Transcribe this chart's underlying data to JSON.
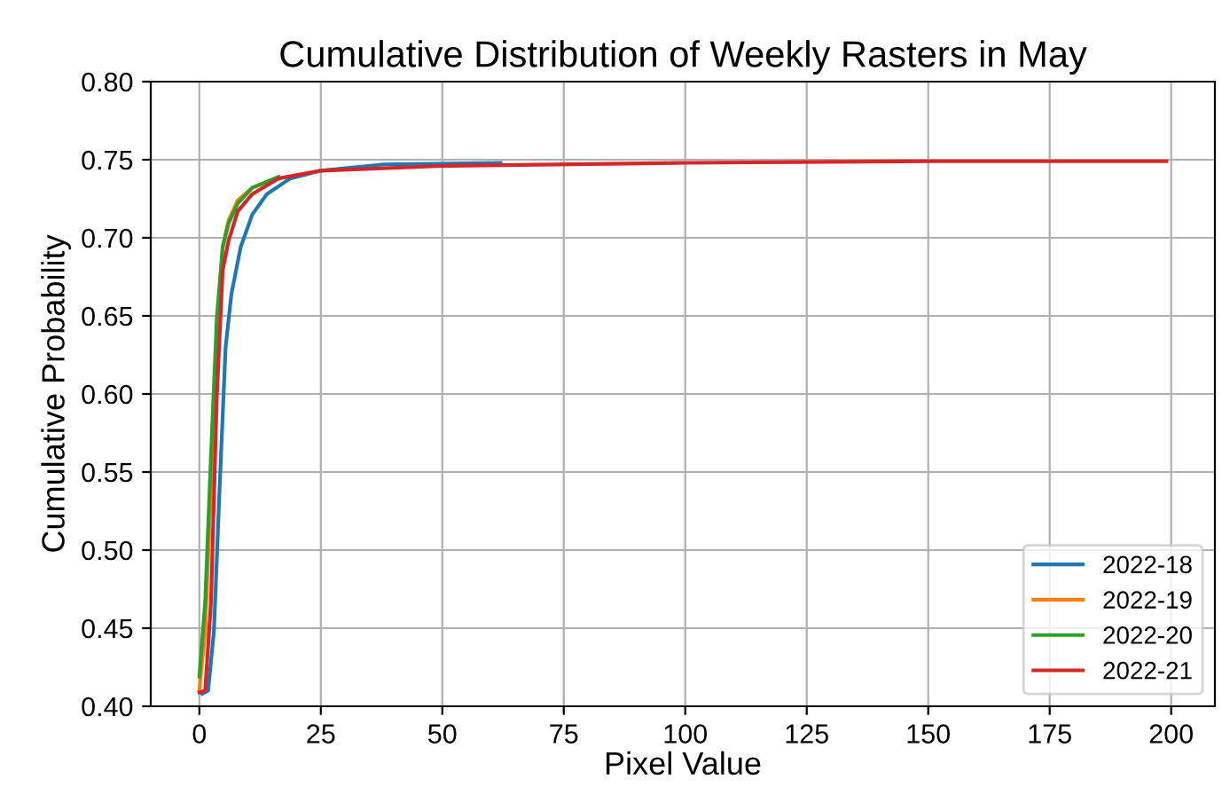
{
  "chart_data": {
    "type": "line",
    "title": "Cumulative Distribution of Weekly Rasters in May",
    "xlabel": "Pixel Value",
    "ylabel": "Cumulative Probability",
    "xlim": [
      -10,
      209
    ],
    "xticks": [
      0,
      25,
      50,
      75,
      100,
      125,
      150,
      175,
      200
    ],
    "ylim": [
      0.4,
      0.8
    ],
    "yticks": [
      {
        "value": 0.4,
        "label": "0.40"
      },
      0.45,
      {
        "value": 0.5,
        "label": "0.50"
      },
      0.55,
      {
        "value": 0.6,
        "label": "0.60"
      },
      0.65,
      {
        "value": 0.7,
        "label": "0.70"
      },
      0.75,
      {
        "value": 0.8,
        "label": "0.80"
      }
    ],
    "grid": true,
    "legend": "bottom right",
    "series": [
      {
        "name": "2022-18",
        "color": "#1f77b4",
        "x": [
          0.6,
          1.8,
          3.0,
          4.2,
          5.4,
          6.6,
          8.5,
          10.9,
          13.9,
          18.7,
          25,
          38,
          62
        ],
        "values": [
          0.408,
          0.41,
          0.448,
          0.542,
          0.63,
          0.664,
          0.694,
          0.715,
          0.728,
          0.738,
          0.743,
          0.747,
          0.748
        ]
      },
      {
        "name": "2022-19",
        "color": "#ff7f0e",
        "x": [
          0,
          1.2,
          2.4,
          3.6,
          4.8,
          6.0,
          7.9,
          10.9,
          16.3
        ],
        "values": [
          0.41,
          0.448,
          0.542,
          0.637,
          0.694,
          0.711,
          0.724,
          0.732,
          0.739
        ]
      },
      {
        "name": "2022-20",
        "color": "#2ca02c",
        "x": [
          0,
          1.2,
          2.4,
          3.6,
          4.8,
          6.0,
          7.9,
          10.9,
          16.3
        ],
        "values": [
          0.419,
          0.467,
          0.561,
          0.649,
          0.694,
          0.709,
          0.722,
          0.732,
          0.739
        ]
      },
      {
        "name": "2022-21",
        "color": "#d62728",
        "x": [
          0,
          1.2,
          2.4,
          3.6,
          4.8,
          6.0,
          7.9,
          10.9,
          16.3,
          25,
          50,
          100,
          150,
          199
        ],
        "values": [
          0.409,
          0.41,
          0.467,
          0.599,
          0.679,
          0.698,
          0.717,
          0.728,
          0.738,
          0.743,
          0.746,
          0.748,
          0.749,
          0.749
        ]
      }
    ]
  }
}
